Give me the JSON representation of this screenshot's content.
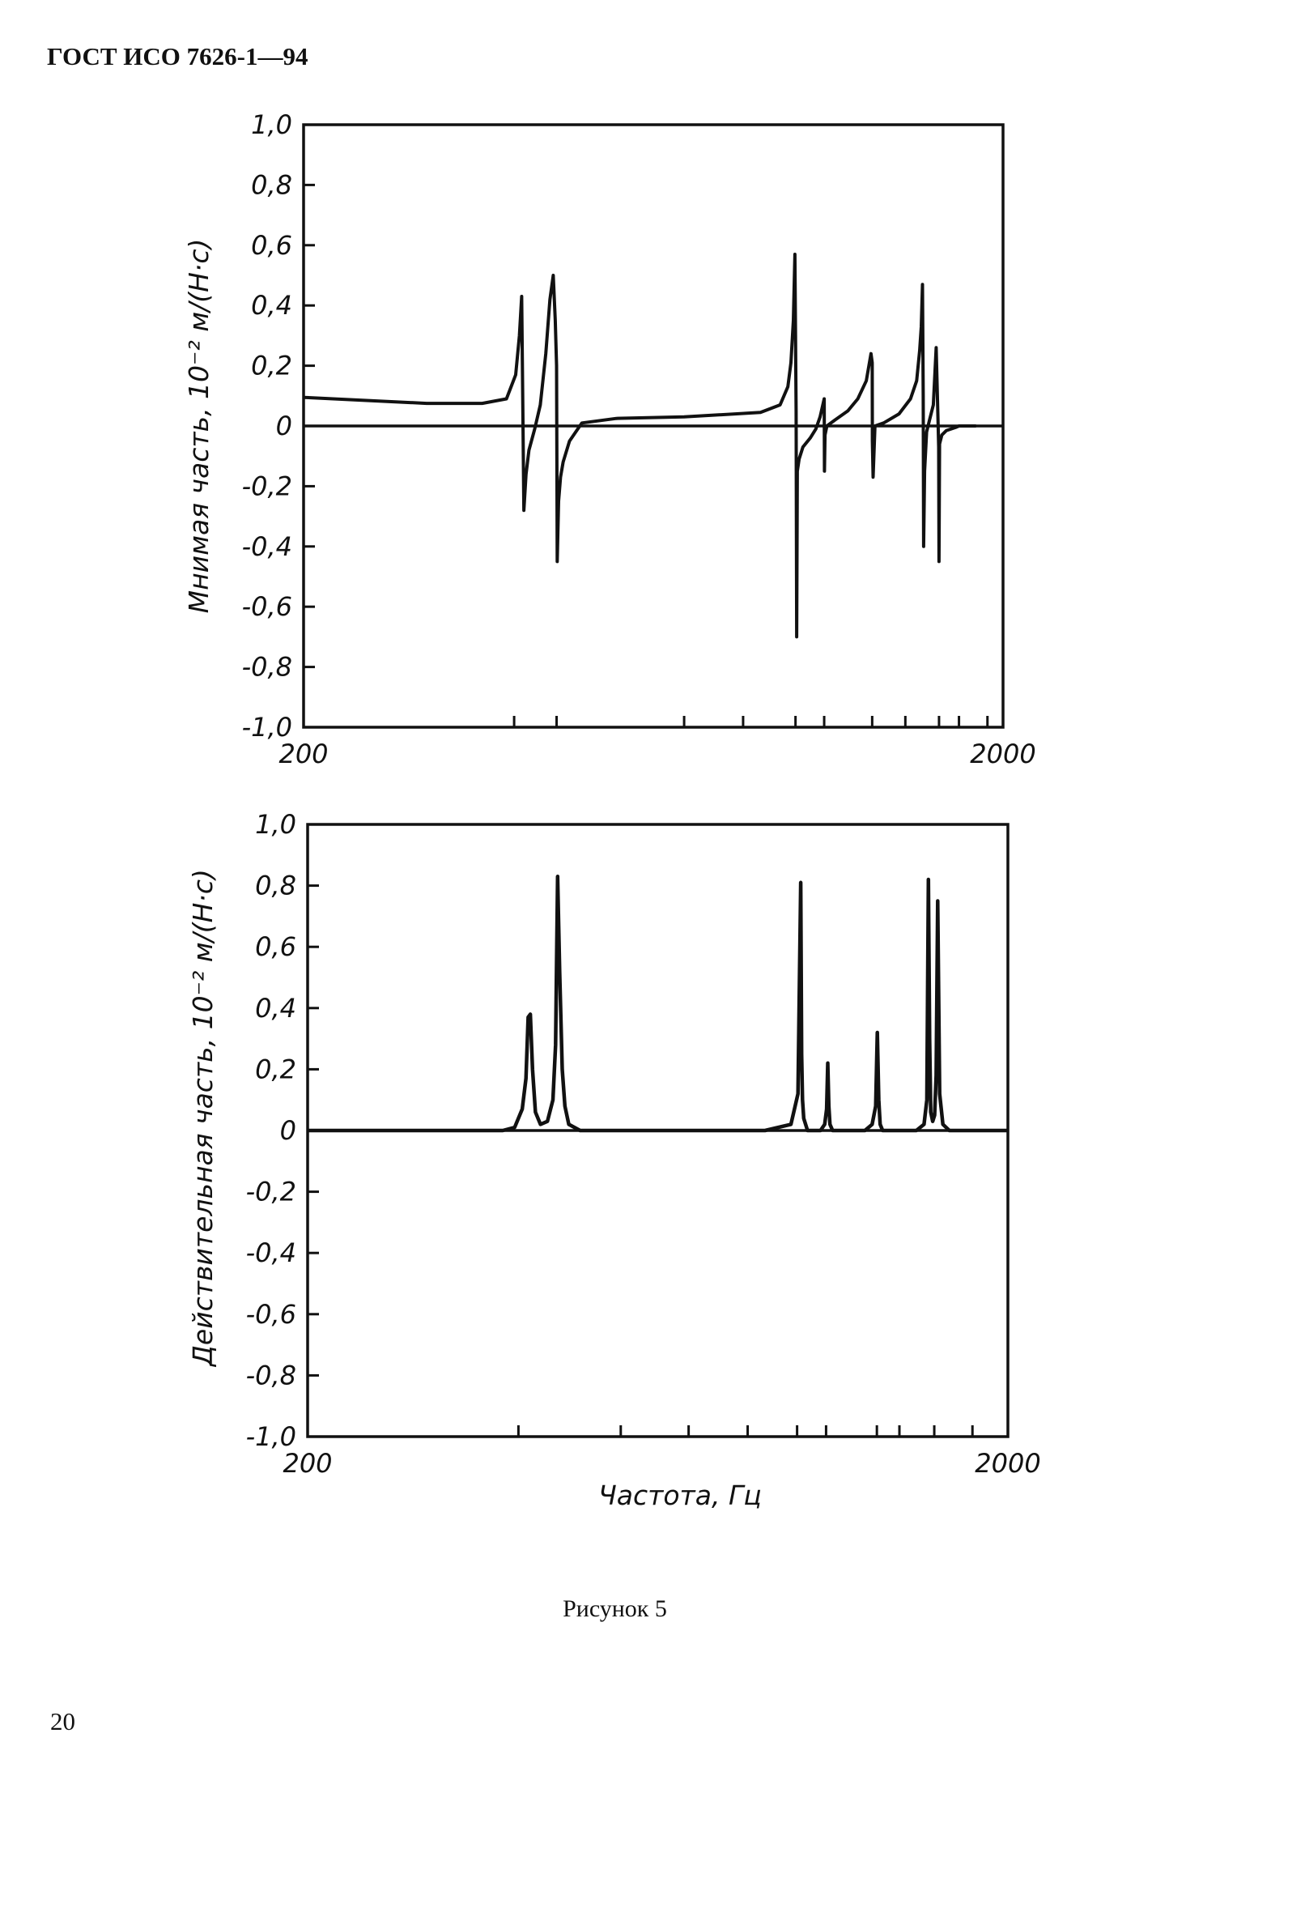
{
  "page": {
    "header": "ГОСТ ИСО 7626-1—94",
    "caption": "Рисунок 5",
    "page_number": "20"
  },
  "chart_data": [
    {
      "id": "imag",
      "type": "line",
      "title": "",
      "ylabel": "Мнимая часть, 10⁻² м/(Н·с)",
      "xlabel": "",
      "xlim": [
        200,
        2000
      ],
      "ylim": [
        -1.0,
        1.0
      ],
      "x_scale": "log",
      "grid": false,
      "x_tick_labels": [
        {
          "value": 200,
          "label": "200"
        },
        {
          "value": 2000,
          "label": "2000"
        }
      ],
      "y_ticks": [
        {
          "value": 1.0,
          "label": "1,0"
        },
        {
          "value": 0.8,
          "label": "0,8"
        },
        {
          "value": 0.6,
          "label": "0,6"
        },
        {
          "value": 0.4,
          "label": "0,4"
        },
        {
          "value": 0.2,
          "label": "0,2"
        },
        {
          "value": 0,
          "label": "0"
        },
        {
          "value": -0.2,
          "label": "-0,2"
        },
        {
          "value": -0.4,
          "label": "-0,4"
        },
        {
          "value": -0.6,
          "label": "-0,6"
        },
        {
          "value": -0.8,
          "label": "-0,8"
        },
        {
          "value": -1.0,
          "label": "-1,0"
        }
      ],
      "x_minor_ticks": [
        400,
        460,
        700,
        850,
        1010,
        1110,
        1300,
        1450,
        1620,
        1730,
        1900
      ],
      "series": [
        {
          "x": [
            200,
            300,
            360,
            390,
            402,
            407,
            410,
            411,
            413,
            416,
            420,
            428,
            436,
            444,
            450,
            455,
            458,
            460,
            461,
            463,
            466,
            470,
            480,
            500,
            560,
            700,
            900,
            960,
            985,
            995,
            1003,
            1008,
            1012,
            1014,
            1016,
            1022,
            1035,
            1060,
            1080,
            1095,
            1105,
            1110,
            1111,
            1113,
            1120,
            1150,
            1200,
            1240,
            1275,
            1295,
            1300,
            1301,
            1304,
            1312,
            1350,
            1420,
            1475,
            1505,
            1520,
            1528,
            1534,
            1538,
            1540,
            1545,
            1555,
            1570,
            1590,
            1605,
            1612,
            1618,
            1620,
            1623,
            1635,
            1660,
            1710,
            1730,
            1755,
            1780,
            1810,
            1830
          ],
          "y": [
            0.095,
            0.075,
            0.075,
            0.09,
            0.17,
            0.3,
            0.43,
            0.2,
            -0.28,
            -0.16,
            -0.08,
            -0.01,
            0.07,
            0.24,
            0.42,
            0.5,
            0.35,
            0.2,
            -0.45,
            -0.25,
            -0.17,
            -0.12,
            -0.05,
            0.01,
            0.025,
            0.03,
            0.045,
            0.07,
            0.13,
            0.21,
            0.35,
            0.57,
            0.05,
            -0.7,
            -0.15,
            -0.11,
            -0.07,
            -0.04,
            -0.01,
            0.03,
            0.07,
            0.09,
            -0.15,
            -0.03,
            0.0,
            0.02,
            0.05,
            0.09,
            0.15,
            0.24,
            0.21,
            -0.05,
            -0.17,
            0.0,
            0.01,
            0.04,
            0.09,
            0.15,
            0.25,
            0.33,
            0.47,
            0.1,
            -0.4,
            -0.15,
            -0.02,
            0.02,
            0.07,
            0.26,
            0.08,
            -0.07,
            -0.45,
            -0.06,
            -0.03,
            -0.015,
            -0.005,
            0.0,
            0.0,
            0.0,
            0.0,
            0.0
          ]
        }
      ]
    },
    {
      "id": "real",
      "type": "line",
      "title": "",
      "ylabel": "Действительная часть, 10⁻² м/(Н·с)",
      "xlabel": "Частота, Гц",
      "xlim": [
        200,
        2000
      ],
      "ylim": [
        -1.0,
        1.0
      ],
      "x_scale": "log",
      "grid": false,
      "x_tick_labels": [
        {
          "value": 200,
          "label": "200"
        },
        {
          "value": 2000,
          "label": "2000"
        }
      ],
      "y_ticks": [
        {
          "value": 1.0,
          "label": "1,0"
        },
        {
          "value": 0.8,
          "label": "0,8"
        },
        {
          "value": 0.6,
          "label": "0,6"
        },
        {
          "value": 0.4,
          "label": "0,4"
        },
        {
          "value": 0.2,
          "label": "0,2"
        },
        {
          "value": 0,
          "label": "0"
        },
        {
          "value": -0.2,
          "label": "-0,2"
        },
        {
          "value": -0.4,
          "label": "-0,4"
        },
        {
          "value": -0.6,
          "label": "-0,6"
        },
        {
          "value": -0.8,
          "label": "-0,8"
        },
        {
          "value": -1.0,
          "label": "-1,0"
        }
      ],
      "x_minor_ticks": [
        400,
        560,
        700,
        850,
        1000,
        1100,
        1300,
        1400,
        1570,
        1780,
        2000
      ],
      "series": [
        {
          "x": [
            200,
            380,
            395,
            405,
            410,
            413,
            416,
            419,
            423,
            430,
            440,
            448,
            452,
            455,
            458,
            462,
            466,
            472,
            490,
            900,
            980,
            1003,
            1012,
            1015,
            1018,
            1022,
            1035,
            1080,
            1095,
            1102,
            1106,
            1110,
            1114,
            1124,
            1160,
            1250,
            1280,
            1295,
            1302,
            1308,
            1314,
            1325,
            1400,
            1480,
            1518,
            1532,
            1540,
            1546,
            1552,
            1562,
            1572,
            1580,
            1588,
            1598,
            1615,
            1650,
            2000
          ],
          "y": [
            0,
            0,
            0.01,
            0.07,
            0.17,
            0.37,
            0.38,
            0.2,
            0.06,
            0.02,
            0.03,
            0.1,
            0.28,
            0.83,
            0.52,
            0.2,
            0.08,
            0.02,
            0,
            0,
            0.02,
            0.12,
            0.81,
            0.25,
            0.1,
            0.04,
            0,
            0,
            0.02,
            0.07,
            0.22,
            0.08,
            0.02,
            0,
            0,
            0,
            0.02,
            0.08,
            0.32,
            0.1,
            0.02,
            0,
            0,
            0,
            0.02,
            0.1,
            0.82,
            0.3,
            0.06,
            0.03,
            0.05,
            0.18,
            0.75,
            0.12,
            0.02,
            0,
            0
          ]
        }
      ]
    }
  ]
}
